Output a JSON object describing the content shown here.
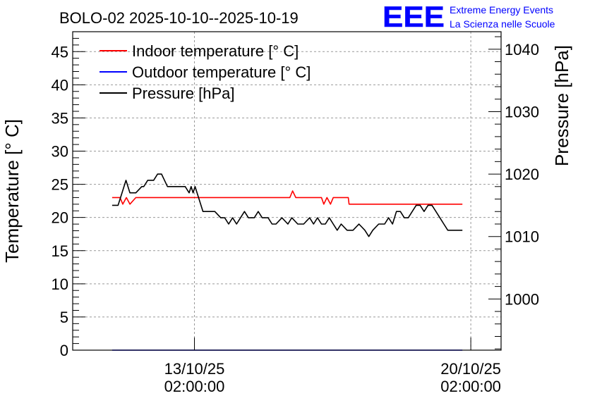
{
  "chart_data": {
    "type": "line",
    "title": "BOLO-02 2025-10-10--2025-10-19",
    "logo": {
      "letters": "EEE",
      "line1": "Extreme Energy Events",
      "line2": "La Scienza nelle Scuole"
    },
    "y_left": {
      "label": "Temperature [° C]",
      "range": [
        0,
        48
      ],
      "ticks": [
        0,
        5,
        10,
        15,
        20,
        25,
        30,
        35,
        40,
        45
      ],
      "tick_labels": [
        "0",
        "5",
        "10",
        "15",
        "20",
        "25",
        "30",
        "35",
        "40",
        "45"
      ]
    },
    "y_right": {
      "label": "Pressure [hPa]",
      "range": [
        991.8,
        1042.8
      ],
      "ticks": [
        1000,
        1010,
        1020,
        1030,
        1040
      ],
      "tick_labels": [
        "1000",
        "1010",
        "1020",
        "1030",
        "1040"
      ]
    },
    "x_axis": {
      "unit": "days since 2025-10-10 00:00",
      "range": [
        0,
        10.85
      ],
      "ticks": [
        {
          "value": 3.0833,
          "date": "13/10/25",
          "time": "02:00:00"
        },
        {
          "value": 10.0833,
          "date": "20/10/25",
          "time": "02:00:00"
        }
      ]
    },
    "grid": true,
    "legend_position": "top-left",
    "legend": [
      {
        "label": "Indoor temperature [° C]",
        "color": "#ff0000"
      },
      {
        "label": "Outdoor temperature [° C]",
        "color": "#0000ff"
      },
      {
        "label": "Pressure [hPa]",
        "color": "#000000"
      }
    ],
    "series": [
      {
        "name": "Indoor temperature [° C]",
        "axis": "left",
        "color": "#ff0000",
        "x": [
          1.0,
          1.2,
          1.27,
          1.36,
          1.45,
          1.6,
          5.5,
          5.57,
          5.65,
          5.72,
          6.3,
          6.36,
          6.44,
          6.53,
          6.6,
          6.98,
          7.0,
          7.08,
          7.1,
          9.87
        ],
        "y": [
          23,
          23,
          22,
          23,
          22,
          23,
          23,
          24,
          23,
          23,
          23,
          22,
          23,
          22,
          23,
          23,
          22,
          22,
          22,
          22
        ]
      },
      {
        "name": "Outdoor temperature [° C]",
        "axis": "left",
        "color": "#0000ff",
        "x": [
          1.0,
          9.87
        ],
        "y": [
          0,
          0
        ]
      },
      {
        "name": "Pressure [hPa]",
        "axis": "right",
        "color": "#000000",
        "x": [
          1.0,
          1.15,
          1.25,
          1.35,
          1.45,
          1.6,
          1.75,
          1.8,
          1.9,
          2.05,
          2.15,
          2.25,
          2.4,
          2.45,
          2.6,
          2.85,
          2.95,
          3.0,
          3.05,
          3.1,
          3.2,
          3.3,
          3.4,
          3.6,
          3.75,
          3.85,
          3.95,
          4.05,
          4.15,
          4.25,
          4.35,
          4.45,
          4.6,
          4.7,
          4.8,
          4.95,
          5.05,
          5.15,
          5.3,
          5.45,
          5.55,
          5.7,
          5.85,
          6.0,
          6.1,
          6.2,
          6.3,
          6.4,
          6.5,
          6.6,
          6.7,
          6.8,
          6.95,
          7.1,
          7.25,
          7.4,
          7.5,
          7.6,
          7.75,
          7.9,
          8.0,
          8.1,
          8.2,
          8.3,
          8.4,
          8.5,
          8.6,
          8.7,
          8.8,
          8.9,
          9.0,
          9.1,
          9.2,
          9.3,
          9.4,
          9.5,
          9.6,
          9.7,
          9.8,
          9.87
        ],
        "y": [
          1015,
          1015,
          1017,
          1019,
          1017,
          1017,
          1018,
          1018,
          1019,
          1019,
          1020,
          1020,
          1018,
          1018,
          1018,
          1018,
          1017,
          1018,
          1017,
          1018,
          1016,
          1014,
          1014,
          1014,
          1013,
          1013,
          1012,
          1013,
          1012,
          1013,
          1014,
          1013,
          1013,
          1014,
          1013,
          1013,
          1012,
          1012,
          1013,
          1012,
          1013,
          1012,
          1012,
          1013,
          1012,
          1013,
          1012,
          1012,
          1013,
          1012,
          1011,
          1012,
          1011,
          1011,
          1012,
          1011,
          1010,
          1011,
          1012,
          1012,
          1013,
          1012,
          1014,
          1014,
          1013,
          1013,
          1014,
          1015,
          1015,
          1014,
          1015,
          1015,
          1014,
          1013,
          1012,
          1011,
          1011,
          1011,
          1011,
          1011
        ]
      }
    ]
  }
}
